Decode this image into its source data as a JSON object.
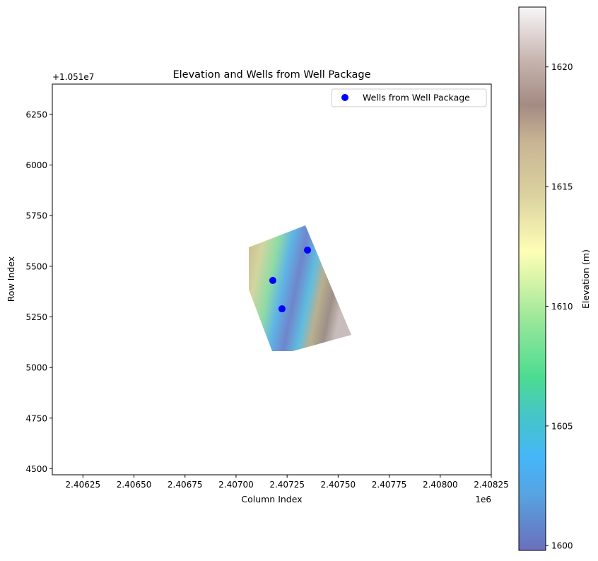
{
  "chart_data": {
    "type": "scatter",
    "title": "Elevation and Wells from Well Package",
    "xlabel": "Column Index",
    "ylabel": "Row Index",
    "x_offset_label": "1e6",
    "y_offset_label": "+1.051e7",
    "x_ticks": [
      "2.40625",
      "2.40650",
      "2.40675",
      "2.40700",
      "2.40725",
      "2.40750",
      "2.40775",
      "2.40800",
      "2.40825"
    ],
    "y_ticks": [
      "4500",
      "4750",
      "5000",
      "5250",
      "5500",
      "5750",
      "6000",
      "6250"
    ],
    "xlim": [
      2406100,
      2408250
    ],
    "ylim": [
      4470,
      6400
    ],
    "series": [
      {
        "name": "Wells from Well Package",
        "color": "#0000ff",
        "points": [
          {
            "x": 2407180,
            "y": 5430
          },
          {
            "x": 2407225,
            "y": 5290
          },
          {
            "x": 2407350,
            "y": 5580
          }
        ]
      }
    ],
    "legend": {
      "position": "upper right",
      "label": "Wells from Well Package"
    },
    "colorbar": {
      "label": "Elevation (m)",
      "ticks": [
        "1600",
        "1605",
        "1610",
        "1615",
        "1620"
      ],
      "min": 1599.8,
      "max": 1622.5,
      "colormap": "terrain (alpha 0.6)"
    },
    "raster": {
      "description": "elevation surface"
    }
  }
}
